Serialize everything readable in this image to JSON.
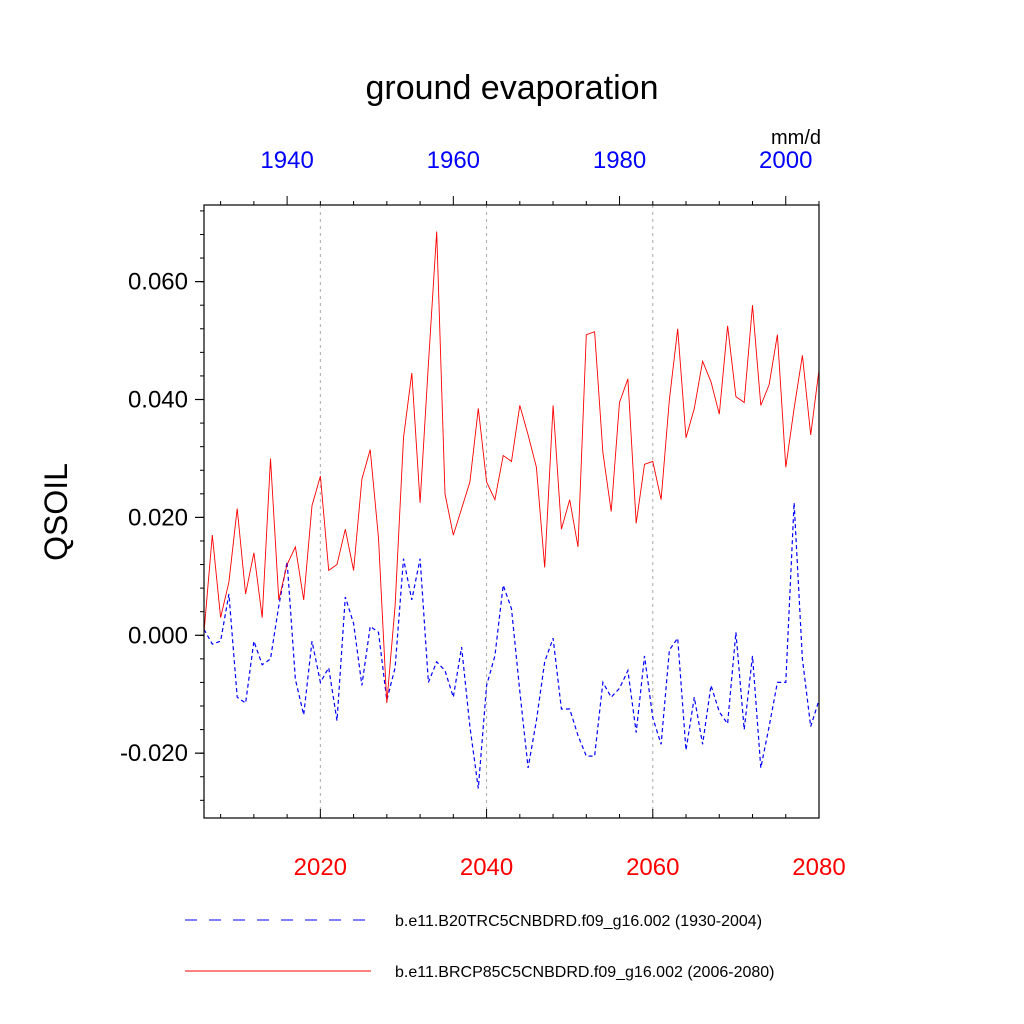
{
  "chart_data": {
    "type": "line",
    "title": "ground evaporation",
    "ylabel": "QSOIL",
    "units": "mm/d",
    "ylim": [
      -0.031,
      0.073
    ],
    "yticks": [
      -0.02,
      0.0,
      0.02,
      0.04,
      0.06
    ],
    "ytick_labels": [
      "-0.020",
      "0.000",
      "0.020",
      "0.040",
      "0.060"
    ],
    "bottom_axis": {
      "range": [
        2006,
        2080
      ],
      "ticks": [
        2020,
        2040,
        2060,
        2080
      ],
      "tick_labels": [
        "2020",
        "2040",
        "2060",
        "2080"
      ],
      "color": "#ff0000"
    },
    "top_axis": {
      "range": [
        1930,
        2004
      ],
      "ticks": [
        1940,
        1960,
        1980,
        2000
      ],
      "tick_labels": [
        "1940",
        "1960",
        "1980",
        "2000"
      ],
      "color": "#0000ff"
    },
    "vertical_gridlines_at": [
      2020,
      2040,
      2060
    ],
    "series": [
      {
        "name": "b.e11.B20TRC5CNBDRD.f09_g16.002 (1930-2004)",
        "axis": "top",
        "color": "#0000ff",
        "style": "dashed",
        "x_start": 1930,
        "values": [
          0.001,
          -0.0015,
          -0.001,
          0.007,
          -0.0105,
          -0.0115,
          -0.001,
          -0.005,
          -0.004,
          0.005,
          0.0125,
          -0.0075,
          -0.0135,
          -0.001,
          -0.008,
          -0.0055,
          -0.0145,
          0.0065,
          0.002,
          -0.0085,
          0.0015,
          0.0005,
          -0.011,
          -0.0055,
          0.013,
          0.006,
          0.013,
          -0.008,
          -0.0045,
          -0.006,
          -0.0105,
          -0.002,
          -0.0155,
          -0.026,
          -0.0085,
          -0.0035,
          0.0085,
          0.0045,
          -0.0095,
          -0.0225,
          -0.0145,
          -0.0045,
          -0.0005,
          -0.0125,
          -0.0125,
          -0.017,
          -0.0205,
          -0.0205,
          -0.008,
          -0.0105,
          -0.009,
          -0.006,
          -0.0165,
          -0.0035,
          -0.014,
          -0.0185,
          -0.0025,
          -0.0005,
          -0.0195,
          -0.0105,
          -0.0185,
          -0.0085,
          -0.013,
          -0.015,
          0.0005,
          -0.016,
          -0.0035,
          -0.0225,
          -0.0155,
          -0.008,
          -0.008,
          0.0225,
          -0.004,
          -0.0155,
          -0.011
        ]
      },
      {
        "name": "b.e11.BRCP85C5CNBDRD.f09_g16.002 (2006-2080)",
        "axis": "bottom",
        "color": "#ff0000",
        "style": "solid",
        "x_start": 2006,
        "values": [
          0.0005,
          0.017,
          0.003,
          0.009,
          0.0215,
          0.007,
          0.014,
          0.003,
          0.03,
          0.006,
          0.012,
          0.015,
          0.006,
          0.022,
          0.027,
          0.011,
          0.012,
          0.018,
          0.011,
          0.0265,
          0.0315,
          0.0165,
          -0.0115,
          0.005,
          0.0335,
          0.0445,
          0.0225,
          0.046,
          0.0685,
          0.024,
          0.017,
          0.0215,
          0.026,
          0.0385,
          0.026,
          0.023,
          0.0305,
          0.0295,
          0.039,
          0.034,
          0.0285,
          0.0115,
          0.039,
          0.018,
          0.023,
          0.015,
          0.051,
          0.0515,
          0.031,
          0.021,
          0.0395,
          0.0435,
          0.019,
          0.029,
          0.0295,
          0.023,
          0.04,
          0.052,
          0.0335,
          0.0385,
          0.0465,
          0.043,
          0.0375,
          0.0525,
          0.0405,
          0.0395,
          0.056,
          0.039,
          0.0425,
          0.051,
          0.0285,
          0.0385,
          0.0475,
          0.034,
          0.045
        ]
      }
    ]
  }
}
